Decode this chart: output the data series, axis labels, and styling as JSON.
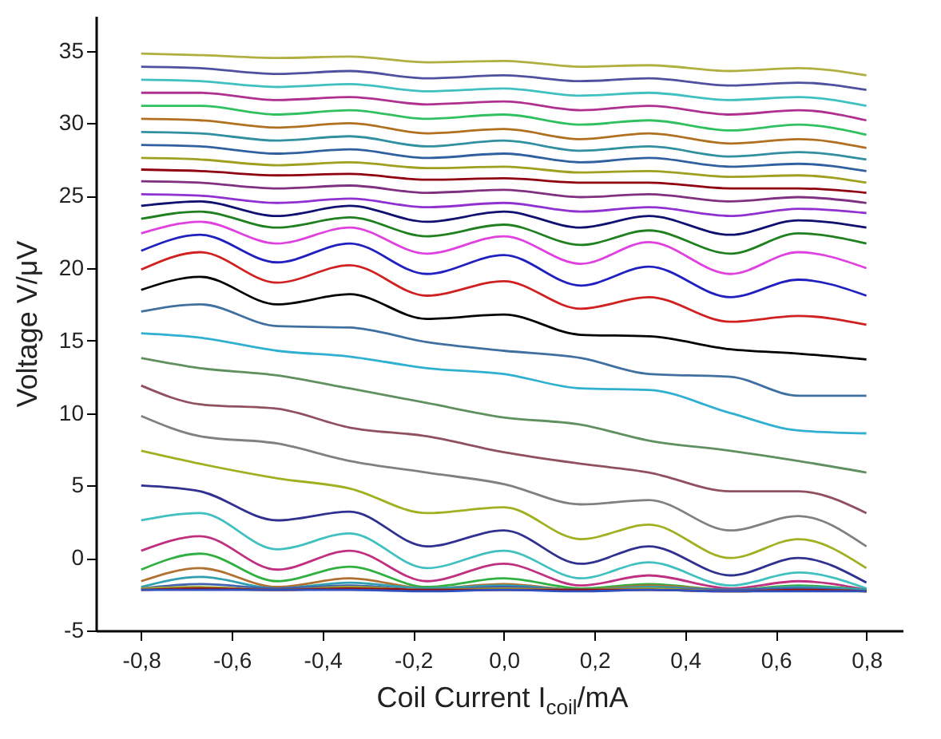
{
  "chart_data": {
    "type": "line",
    "xlabel": "Coil Current I$_{coil}$/mA",
    "ylabel": "Voltage V/μV",
    "xlim": [
      -0.9,
      0.88
    ],
    "ylim": [
      -5,
      37.4
    ],
    "xticks": [
      {
        "value": -0.8,
        "label": "-0,8"
      },
      {
        "value": -0.6,
        "label": "-0,6"
      },
      {
        "value": -0.4,
        "label": "-0,4"
      },
      {
        "value": -0.2,
        "label": "-0,2"
      },
      {
        "value": 0,
        "label": "0,0"
      },
      {
        "value": 0.2,
        "label": "0,2"
      },
      {
        "value": 0.4,
        "label": "0,4"
      },
      {
        "value": 0.6,
        "label": "0,6"
      },
      {
        "value": 0.8,
        "label": "0,8"
      }
    ],
    "yticks": [
      -5,
      0,
      5,
      10,
      15,
      20,
      25,
      30,
      35
    ],
    "grid": false,
    "marker": "none",
    "line_style": "solid",
    "x": [
      -0.8,
      -0.67,
      -0.5,
      -0.34,
      -0.17,
      0,
      0.17,
      0.32,
      0.5,
      0.65,
      0.8
    ],
    "series": [
      {
        "color": "#b0b040",
        "values": [
          34.8,
          34.7,
          34.5,
          34.6,
          34.2,
          34.3,
          33.9,
          34.0,
          33.6,
          33.8,
          33.3
        ]
      },
      {
        "color": "#5050a0",
        "values": [
          33.9,
          33.8,
          33.4,
          33.6,
          33.1,
          33.3,
          32.9,
          33.1,
          32.6,
          32.8,
          32.3
        ]
      },
      {
        "color": "#40c0c0",
        "values": [
          33.0,
          32.9,
          32.5,
          32.7,
          32.2,
          32.4,
          31.9,
          32.1,
          31.6,
          31.8,
          31.2
        ]
      },
      {
        "color": "#b03090",
        "values": [
          32.1,
          32.1,
          31.6,
          31.8,
          31.3,
          31.5,
          30.9,
          31.2,
          30.6,
          30.9,
          30.2
        ]
      },
      {
        "color": "#30c060",
        "values": [
          31.2,
          31.2,
          30.6,
          30.9,
          30.3,
          30.6,
          29.9,
          30.2,
          29.5,
          29.9,
          29.2
        ]
      },
      {
        "color": "#b07020",
        "values": [
          30.3,
          30.2,
          29.7,
          30.0,
          29.3,
          29.6,
          28.9,
          29.3,
          28.6,
          28.9,
          28.3
        ]
      },
      {
        "color": "#3090a0",
        "values": [
          29.4,
          29.3,
          28.8,
          29.1,
          28.4,
          28.8,
          28.1,
          28.4,
          27.7,
          28.0,
          27.5
        ]
      },
      {
        "color": "#3060a0",
        "values": [
          28.5,
          28.4,
          27.9,
          28.2,
          27.6,
          27.9,
          27.3,
          27.6,
          27.0,
          27.2,
          26.7
        ]
      },
      {
        "color": "#a0a020",
        "values": [
          27.6,
          27.5,
          27.1,
          27.3,
          26.9,
          27.0,
          26.6,
          26.7,
          26.3,
          26.4,
          25.9
        ]
      },
      {
        "color": "#900010",
        "values": [
          26.8,
          26.7,
          26.4,
          26.5,
          26.1,
          26.2,
          25.9,
          25.9,
          25.5,
          25.5,
          25.2
        ]
      },
      {
        "color": "#803080",
        "values": [
          26.0,
          25.9,
          25.5,
          25.7,
          25.2,
          25.4,
          24.9,
          25.1,
          24.6,
          24.9,
          24.5
        ]
      },
      {
        "color": "#9030d0",
        "values": [
          25.1,
          25.0,
          24.5,
          24.8,
          24.2,
          24.5,
          23.9,
          24.2,
          23.6,
          24.1,
          23.8
        ]
      },
      {
        "color": "#101070",
        "values": [
          24.3,
          24.6,
          23.6,
          24.3,
          23.2,
          23.9,
          22.8,
          23.6,
          22.3,
          23.3,
          22.8
        ]
      },
      {
        "color": "#208020",
        "values": [
          23.4,
          23.9,
          22.8,
          23.5,
          22.2,
          23.0,
          21.6,
          22.6,
          21.0,
          22.4,
          21.7
        ]
      },
      {
        "color": "#e040e0",
        "values": [
          22.4,
          23.2,
          21.7,
          22.8,
          21.0,
          22.2,
          20.3,
          21.8,
          19.6,
          21.1,
          20.0
        ]
      },
      {
        "color": "#2020c0",
        "values": [
          21.2,
          22.3,
          20.4,
          21.7,
          19.6,
          20.9,
          18.8,
          20.1,
          18.0,
          19.2,
          18.1
        ]
      },
      {
        "color": "#d02020",
        "values": [
          19.9,
          21.1,
          19.0,
          20.2,
          18.1,
          19.1,
          17.2,
          18.0,
          16.3,
          16.7,
          16.1
        ]
      },
      {
        "color": "#000000",
        "values": [
          18.5,
          19.4,
          17.5,
          18.2,
          16.5,
          16.8,
          15.4,
          15.3,
          14.4,
          14.1,
          13.7
        ]
      },
      {
        "color": "#4070a0",
        "values": [
          17.0,
          17.5,
          16.0,
          15.9,
          14.9,
          14.3,
          13.8,
          12.7,
          12.5,
          11.2,
          11.2
        ]
      },
      {
        "color": "#30b0d0",
        "values": [
          15.5,
          15.2,
          14.3,
          13.9,
          13.1,
          12.7,
          11.7,
          11.6,
          10.0,
          8.8,
          8.6
        ]
      },
      {
        "color": "#609060",
        "values": [
          13.8,
          13.1,
          12.6,
          11.7,
          10.7,
          9.7,
          9.2,
          8.1,
          7.4,
          6.7,
          5.9
        ]
      },
      {
        "color": "#905060",
        "values": [
          11.9,
          10.6,
          10.3,
          9.0,
          8.4,
          7.3,
          6.5,
          5.9,
          4.6,
          4.6,
          3.1
        ]
      },
      {
        "color": "#808080",
        "values": [
          9.8,
          8.4,
          7.9,
          6.7,
          5.9,
          5.1,
          3.7,
          4.0,
          1.9,
          2.9,
          0.8
        ]
      },
      {
        "color": "#a0b020",
        "values": [
          7.4,
          6.5,
          5.5,
          4.8,
          3.1,
          3.5,
          1.3,
          2.3,
          0.0,
          1.3,
          -0.7
        ]
      },
      {
        "color": "#303090",
        "values": [
          5.0,
          4.6,
          2.6,
          3.2,
          0.8,
          1.9,
          -0.4,
          0.8,
          -1.2,
          0.0,
          -1.7
        ]
      },
      {
        "color": "#40c0c0",
        "values": [
          2.6,
          3.1,
          0.6,
          1.7,
          -0.7,
          0.5,
          -1.4,
          -0.3,
          -1.9,
          -1.0,
          -2.1
        ]
      },
      {
        "color": "#c03080",
        "values": [
          0.5,
          1.5,
          -0.8,
          0.5,
          -1.6,
          -0.4,
          -1.9,
          -1.2,
          -2.1,
          -1.6,
          -2.2
        ]
      },
      {
        "color": "#30b040",
        "values": [
          -0.8,
          0.3,
          -1.6,
          -0.6,
          -2.0,
          -1.4,
          -2.1,
          -1.8,
          -2.2,
          -1.9,
          -2.2
        ]
      },
      {
        "color": "#b07030",
        "values": [
          -1.6,
          -0.7,
          -2.0,
          -1.4,
          -2.1,
          -1.8,
          -2.2,
          -1.9,
          -2.2,
          -2.0,
          -2.3
        ]
      },
      {
        "color": "#30a0b0",
        "values": [
          -2.0,
          -1.3,
          -2.1,
          -1.7,
          -2.1,
          -1.9,
          -2.2,
          -2.0,
          -2.2,
          -2.0,
          -2.2
        ]
      },
      {
        "color": "#4060b0",
        "values": [
          -2.1,
          -1.8,
          -2.1,
          -1.9,
          -2.2,
          -2.0,
          -2.2,
          -2.1,
          -2.2,
          -2.1,
          -2.3
        ]
      },
      {
        "color": "#a0a030",
        "values": [
          -2.1,
          -2.0,
          -2.2,
          -2.0,
          -2.2,
          -2.1,
          -2.2,
          -2.1,
          -2.3,
          -2.2,
          -2.3
        ]
      },
      {
        "color": "#901010",
        "values": [
          -2.2,
          -2.1,
          -2.2,
          -2.1,
          -2.2,
          -2.2,
          -2.2,
          -2.2,
          -2.3,
          -2.2,
          -2.3
        ]
      },
      {
        "color": "#3050c0",
        "values": [
          -2.2,
          -2.2,
          -2.2,
          -2.2,
          -2.3,
          -2.2,
          -2.3,
          -2.2,
          -2.3,
          -2.3,
          -2.3
        ]
      }
    ]
  }
}
